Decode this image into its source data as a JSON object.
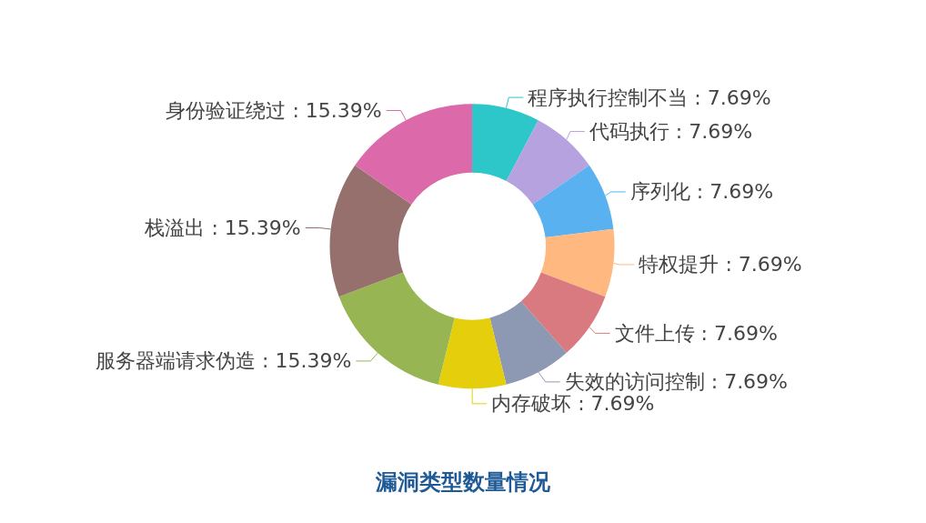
{
  "chart_data": {
    "type": "donut",
    "title": "漏洞类型数量情况",
    "categories": [
      "程序执行控制不当",
      "代码执行",
      "序列化",
      "特权提升",
      "文件上传",
      "失效的访问控制",
      "内存破坏",
      "服务器端请求伪造",
      "栈溢出",
      "身份验证绕过"
    ],
    "values": [
      7.69,
      7.69,
      7.69,
      7.69,
      7.69,
      7.69,
      7.69,
      15.39,
      15.39,
      15.39
    ],
    "value_labels": [
      "7.69%",
      "7.69%",
      "7.69%",
      "7.69%",
      "7.69%",
      "7.69%",
      "7.69%",
      "15.39%",
      "15.39%",
      "15.39%"
    ],
    "colors": [
      "#2ec7c9",
      "#b6a2de",
      "#5ab1ef",
      "#ffb980",
      "#d87a80",
      "#8d98b3",
      "#e5cf0d",
      "#97b552",
      "#95706d",
      "#dc69aa"
    ],
    "legend": false
  }
}
